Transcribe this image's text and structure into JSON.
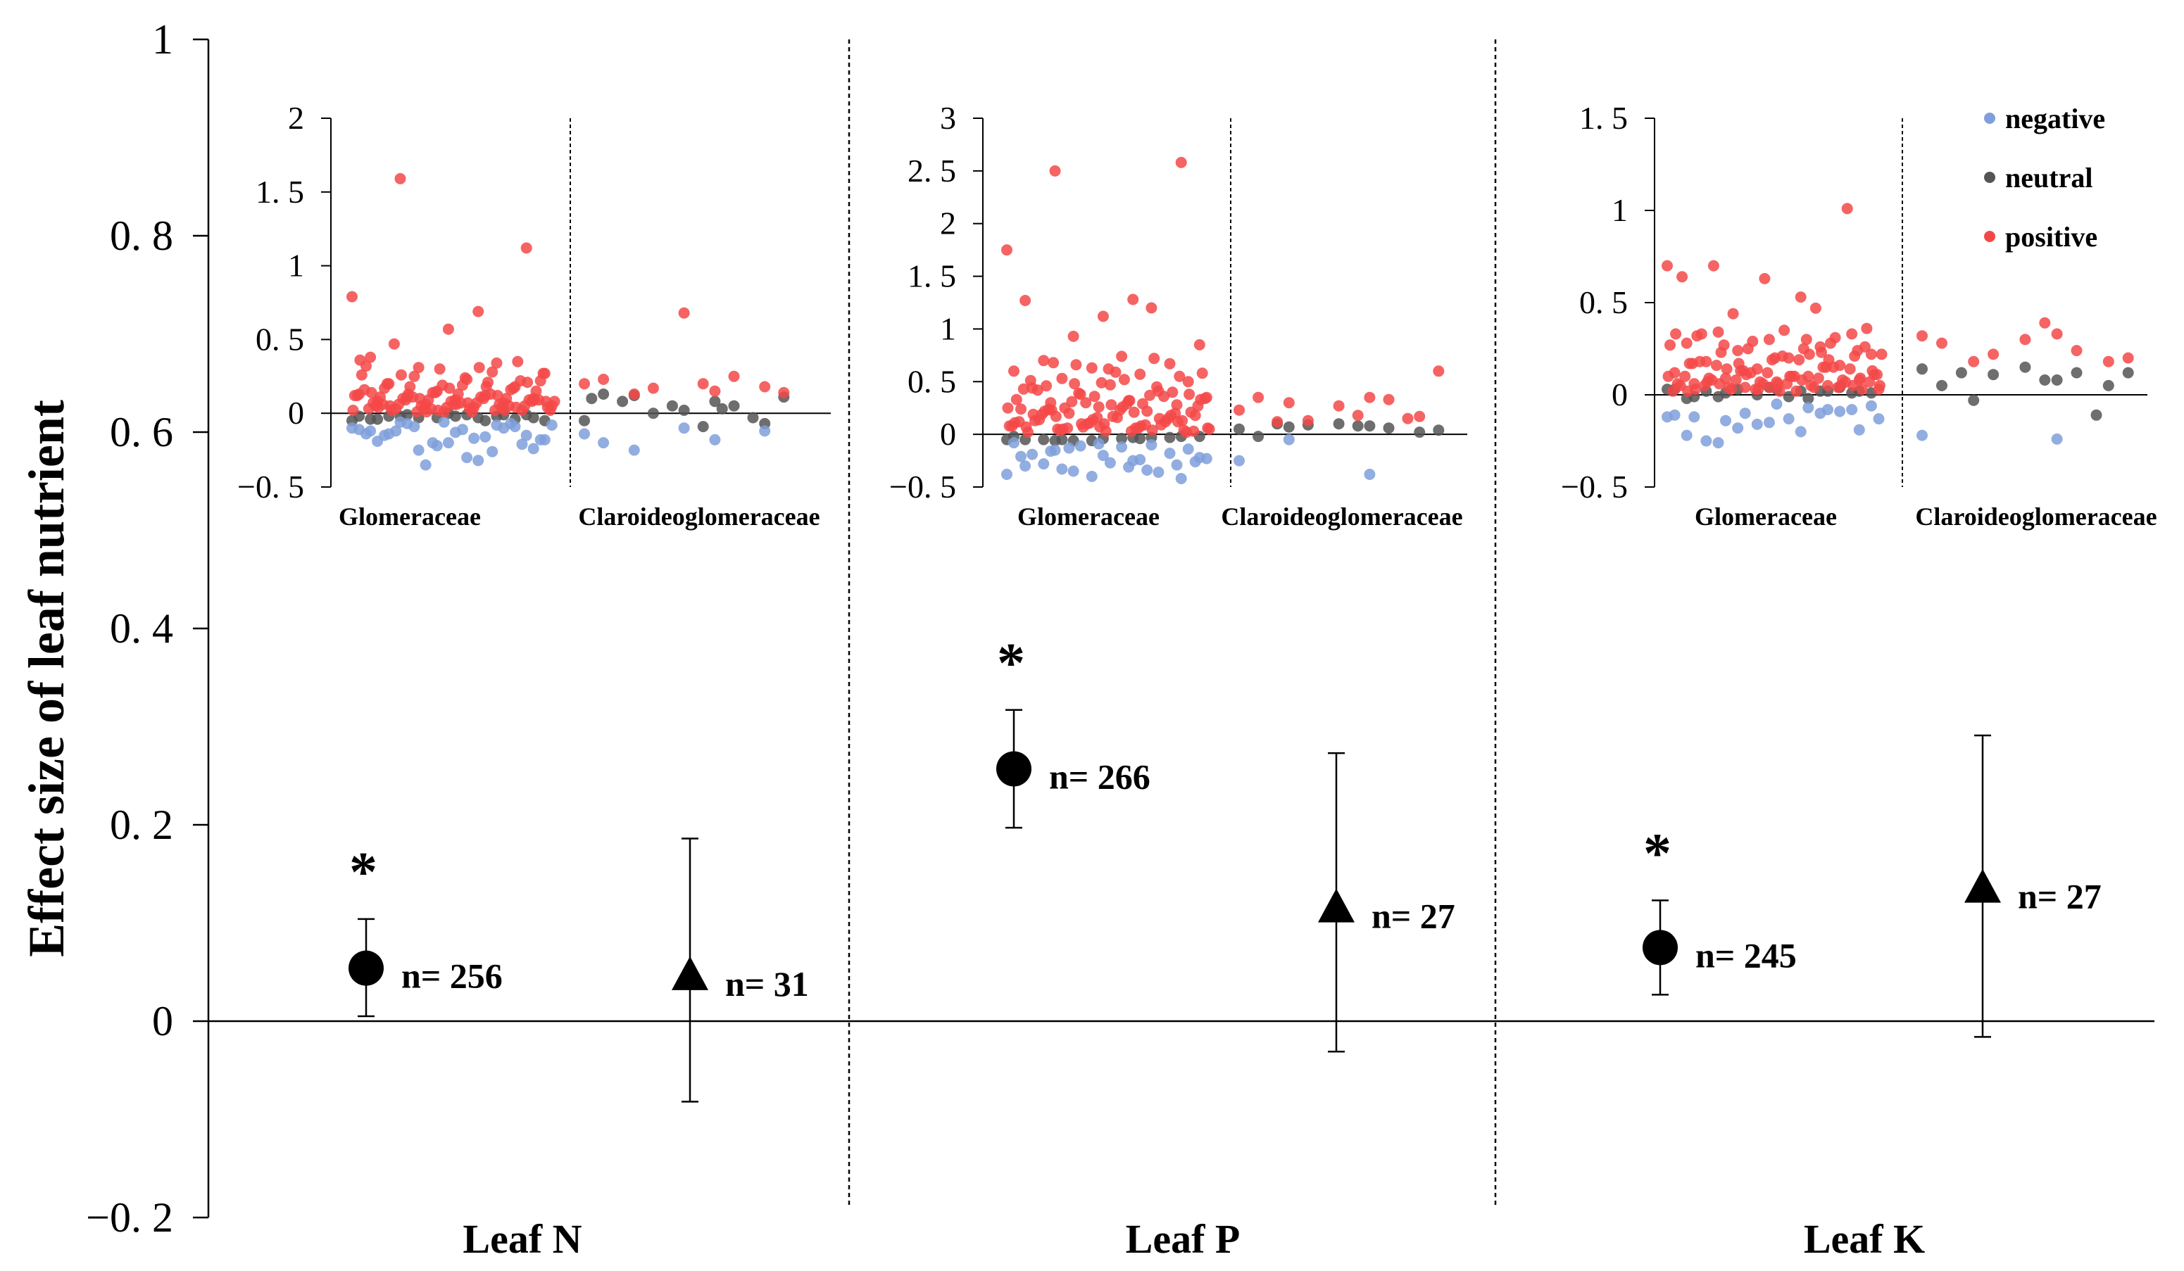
{
  "colors": {
    "negative": "#7f9fdb",
    "neutral": "#555555",
    "positive": "#f44848",
    "marker": "#000000"
  },
  "chart_data": {
    "type": "scatter",
    "ylabel": "Effect size of leaf nutrient",
    "ylim": [
      -0.2,
      1
    ],
    "yticks": [
      -0.2,
      0,
      0.2,
      0.4,
      0.6,
      0.8,
      1
    ],
    "ytick_labels": [
      "−0. 2",
      "0",
      "0. 2",
      "0. 4",
      "0. 6",
      "0. 8",
      "1"
    ],
    "panels": [
      {
        "label": "Leaf N",
        "groups": [
          {
            "family": "Glomeraceae",
            "marker": "circle",
            "mean": 0.054,
            "ci": [
              0.005,
              0.104
            ],
            "n_label": "n= 256",
            "significant": true
          },
          {
            "family": "Claroideoglomeraceae",
            "marker": "triangle",
            "mean": 0.046,
            "ci": [
              -0.082,
              0.186
            ],
            "n_label": "n= 31",
            "significant": false
          }
        ]
      },
      {
        "label": "Leaf P",
        "groups": [
          {
            "family": "Glomeraceae",
            "marker": "circle",
            "mean": 0.257,
            "ci": [
              0.197,
              0.317
            ],
            "n_label": "n= 266",
            "significant": true
          },
          {
            "family": "Claroideoglomeraceae",
            "marker": "triangle",
            "mean": 0.115,
            "ci": [
              -0.031,
              0.273
            ],
            "n_label": "n= 27",
            "significant": false
          }
        ]
      },
      {
        "label": "Leaf K",
        "groups": [
          {
            "family": "Glomeraceae",
            "marker": "circle",
            "mean": 0.075,
            "ci": [
              0.027,
              0.123
            ],
            "n_label": "n= 245",
            "significant": true
          },
          {
            "family": "Claroideoglomeraceae",
            "marker": "triangle",
            "mean": 0.135,
            "ci": [
              -0.016,
              0.291
            ],
            "n_label": "n= 27",
            "significant": false
          }
        ]
      }
    ],
    "significance_marker": "*",
    "insets": [
      {
        "panel": "Leaf N",
        "ylim": [
          -0.5,
          2
        ],
        "yticks": [
          -0.5,
          0,
          0.5,
          1,
          1.5,
          2
        ],
        "ytick_labels": [
          "−0. 5",
          "0",
          "0. 5",
          "1",
          "1. 5",
          "2"
        ],
        "x_labels": [
          "Glomeraceae",
          "Claroideoglomeraceae"
        ],
        "glomeraceae": {
          "positive": [
            0.79,
            0.69,
            1.59,
            1.12,
            0.57,
            0.38,
            0.34,
            0.31,
            0.27,
            0.23,
            0.2,
            0.18,
            0.15,
            0.13,
            0.12,
            0.11,
            0.1,
            0.09,
            0.08,
            0.07,
            0.06,
            0.05,
            0.04,
            0.03,
            0.02,
            0.01,
            0.32,
            0.28,
            0.25,
            0.22,
            0.19,
            0.17,
            0.16,
            0.14,
            0.12,
            0.11,
            0.1,
            0.09,
            0.08,
            0.07,
            0.06,
            0.05,
            0.04,
            0.03,
            0.02,
            0.35,
            0.3,
            0.26,
            0.21,
            0.18,
            0.15,
            0.13,
            0.11,
            0.1,
            0.09,
            0.08,
            0.07,
            0.06,
            0.05,
            0.04,
            0.03,
            0.02,
            0.01,
            0.27,
            0.24,
            0.2,
            0.17,
            0.14,
            0.12,
            0.1,
            0.09,
            0.08,
            0.06,
            0.05,
            0.04,
            0.03,
            0.02,
            0.01,
            0.47,
            0.22,
            0.19,
            0.16,
            0.13,
            0.11,
            0.09,
            0.07,
            0.06,
            0.05,
            0.03,
            0.02,
            0.31,
            0.26,
            0.21,
            0.17,
            0.14,
            0.12,
            0.1,
            0.08,
            0.07,
            0.05,
            0.04,
            0.02,
            0.36,
            0.18,
            0.13,
            0.09,
            0.06,
            0.04,
            0.02,
            0.01
          ],
          "neutral": [
            -0.05,
            -0.03,
            -0.02,
            -0.01,
            0.0,
            -0.04,
            -0.02,
            -0.03,
            -0.05,
            -0.01,
            -0.02,
            -0.04,
            -0.03,
            -0.02,
            -0.05,
            -0.01,
            -0.03,
            -0.02,
            -0.04,
            -0.01
          ],
          "negative": [
            -0.1,
            -0.32,
            -0.06,
            -0.15,
            -0.2,
            -0.12,
            -0.08,
            -0.25,
            -0.18,
            -0.3,
            -0.14,
            -0.09,
            -0.22,
            -0.11,
            -0.16,
            -0.07,
            -0.24,
            -0.13,
            -0.19,
            -0.1,
            -0.35,
            -0.08,
            -0.17,
            -0.12,
            -0.21,
            -0.06,
            -0.14,
            -0.26,
            -0.09,
            -0.18,
            -0.11,
            -0.15,
            -0.07,
            -0.2
          ]
        },
        "claroideoglomeraceae": {
          "positive": [
            0.2,
            0.15,
            0.13,
            0.18,
            0.68,
            0.23,
            0.25,
            0.17,
            0.14,
            0.2
          ],
          "neutral": [
            -0.05,
            0.08,
            0.12,
            -0.07,
            0.02,
            0.13,
            0.05,
            0.0,
            0.11,
            -0.09,
            0.08,
            -0.03,
            0.05,
            0.1,
            0.03
          ],
          "negative": [
            -0.14,
            -0.18,
            -0.25,
            -0.12,
            -0.1,
            -0.2
          ]
        }
      },
      {
        "panel": "Leaf P",
        "ylim": [
          -0.5,
          3
        ],
        "yticks": [
          -0.5,
          0,
          0.5,
          1,
          1.5,
          2,
          2.5,
          3
        ],
        "ytick_labels": [
          "−0. 5",
          "0",
          "0. 5",
          "1",
          "1. 5",
          "2",
          "2. 5",
          "3"
        ],
        "x_labels": [
          "Glomeraceae",
          "Claroideoglomeraceae"
        ],
        "glomeraceae": {
          "positive": [
            1.75,
            1.28,
            2.5,
            2.58,
            1.12,
            1.27,
            1.2,
            0.93,
            0.85,
            0.74,
            0.7,
            0.67,
            0.63,
            0.6,
            0.57,
            0.53,
            0.5,
            0.47,
            0.44,
            0.41,
            0.38,
            0.35,
            0.32,
            0.3,
            0.28,
            0.26,
            0.24,
            0.22,
            0.2,
            0.18,
            0.16,
            0.14,
            0.12,
            0.1,
            0.08,
            0.06,
            0.05,
            0.04,
            0.03,
            0.02,
            0.72,
            0.66,
            0.58,
            0.52,
            0.46,
            0.4,
            0.36,
            0.33,
            0.29,
            0.25,
            0.21,
            0.17,
            0.13,
            0.09,
            0.07,
            0.05,
            0.03,
            0.68,
            0.55,
            0.49,
            0.43,
            0.37,
            0.31,
            0.27,
            0.23,
            0.19,
            0.15,
            0.11,
            0.08,
            0.06,
            0.04,
            0.02,
            0.62,
            0.51,
            0.45,
            0.39,
            0.34,
            0.29,
            0.24,
            0.2,
            0.16,
            0.12,
            0.09,
            0.06,
            0.03,
            0.59,
            0.42,
            0.36,
            0.3,
            0.25,
            0.21,
            0.17,
            0.13,
            0.1,
            0.07,
            0.04,
            0.48,
            0.33,
            0.26,
            0.22,
            0.18,
            0.14,
            0.11,
            0.08,
            0.05,
            0.38,
            0.28,
            0.19,
            0.15,
            0.1,
            0.06,
            0.32,
            0.23,
            0.12,
            0.07
          ],
          "neutral": [
            -0.05,
            -0.03,
            -0.06,
            -0.02,
            -0.04,
            -0.05,
            -0.03,
            -0.06,
            -0.02,
            -0.04,
            -0.05,
            -0.03,
            -0.06,
            -0.02,
            -0.04,
            -0.05
          ],
          "negative": [
            -0.38,
            -0.25,
            -0.15,
            -0.42,
            -0.2,
            -0.3,
            -0.1,
            -0.35,
            -0.22,
            -0.12,
            -0.28,
            -0.18,
            -0.4,
            -0.08,
            -0.24,
            -0.33,
            -0.14,
            -0.27,
            -0.19,
            -0.36,
            -0.11,
            -0.23,
            -0.31,
            -0.16,
            -0.29,
            -0.09,
            -0.21,
            -0.34,
            -0.13,
            -0.26
          ]
        },
        "claroideoglomeraceae": {
          "positive": [
            0.23,
            0.35,
            0.3,
            0.17,
            0.27,
            0.35,
            0.33,
            0.13,
            0.6,
            0.18,
            0.12,
            0.15
          ],
          "neutral": [
            0.05,
            0.08,
            0.07,
            0.02,
            0.1,
            -0.02,
            0.06,
            0.09,
            0.04,
            0.08,
            0.1
          ],
          "negative": [
            -0.25,
            -0.38,
            -0.05
          ]
        }
      },
      {
        "panel": "Leaf K",
        "ylim": [
          -0.5,
          1.5
        ],
        "yticks": [
          -0.5,
          0,
          0.5,
          1,
          1.5
        ],
        "ytick_labels": [
          "−0. 5",
          "0",
          "0. 5",
          "1",
          "1. 5"
        ],
        "x_labels": [
          "Glomeraceae",
          "Claroideoglomeraceae"
        ],
        "glomeraceae": {
          "positive": [
            0.7,
            0.53,
            0.34,
            0.33,
            0.3,
            0.28,
            0.26,
            0.24,
            0.22,
            0.2,
            0.18,
            0.16,
            0.14,
            0.12,
            0.1,
            0.09,
            0.08,
            0.07,
            0.06,
            0.05,
            0.04,
            0.03,
            0.02,
            0.7,
            1.01,
            0.63,
            0.64,
            0.47,
            0.44,
            0.36,
            0.35,
            0.33,
            0.31,
            0.29,
            0.27,
            0.25,
            0.23,
            0.21,
            0.19,
            0.17,
            0.15,
            0.13,
            0.11,
            0.1,
            0.09,
            0.08,
            0.07,
            0.06,
            0.05,
            0.04,
            0.03,
            0.02,
            0.32,
            0.28,
            0.25,
            0.22,
            0.19,
            0.16,
            0.14,
            0.12,
            0.1,
            0.09,
            0.08,
            0.07,
            0.06,
            0.05,
            0.04,
            0.03,
            0.02,
            0.3,
            0.27,
            0.24,
            0.2,
            0.17,
            0.15,
            0.13,
            0.11,
            0.1,
            0.08,
            0.07,
            0.06,
            0.05,
            0.04,
            0.03,
            0.26,
            0.21,
            0.18,
            0.15,
            0.12,
            0.1,
            0.08,
            0.06,
            0.05,
            0.04,
            0.02,
            0.23,
            0.17,
            0.13,
            0.1,
            0.07,
            0.05,
            0.03,
            0.33,
            0.22,
            0.14,
            0.09,
            0.06,
            0.03,
            0.19,
            0.11,
            0.05
          ],
          "neutral": [
            0.03,
            0.02,
            -0.01,
            0.01,
            0.04,
            -0.02,
            0.02,
            0.03,
            0.01,
            -0.01,
            0.02,
            0.04,
            0.0,
            0.03,
            -0.02,
            0.01,
            0.02,
            0.03,
            -0.01,
            0.02
          ],
          "negative": [
            -0.12,
            -0.2,
            -0.26,
            -0.08,
            -0.15,
            -0.22,
            -0.1,
            -0.18,
            -0.06,
            -0.13,
            -0.25,
            -0.09,
            -0.16,
            -0.11,
            -0.07,
            -0.14,
            -0.19,
            -0.05,
            -0.12,
            -0.08,
            -0.1,
            -0.13
          ]
        },
        "claroideoglomeraceae": {
          "positive": [
            0.32,
            0.33,
            0.18,
            0.18,
            0.3,
            0.28,
            0.24,
            0.22,
            0.2,
            0.39
          ],
          "neutral": [
            0.14,
            0.08,
            -0.03,
            0.05,
            0.15,
            0.05,
            0.12,
            0.11,
            0.12,
            0.08,
            0.12,
            -0.11
          ],
          "negative": [
            -0.22,
            -0.24
          ]
        }
      }
    ],
    "legend": {
      "placement": "top-right",
      "entries": [
        {
          "key": "negative",
          "label": "negative"
        },
        {
          "key": "neutral",
          "label": "neutral"
        },
        {
          "key": "positive",
          "label": "positive"
        }
      ]
    }
  }
}
